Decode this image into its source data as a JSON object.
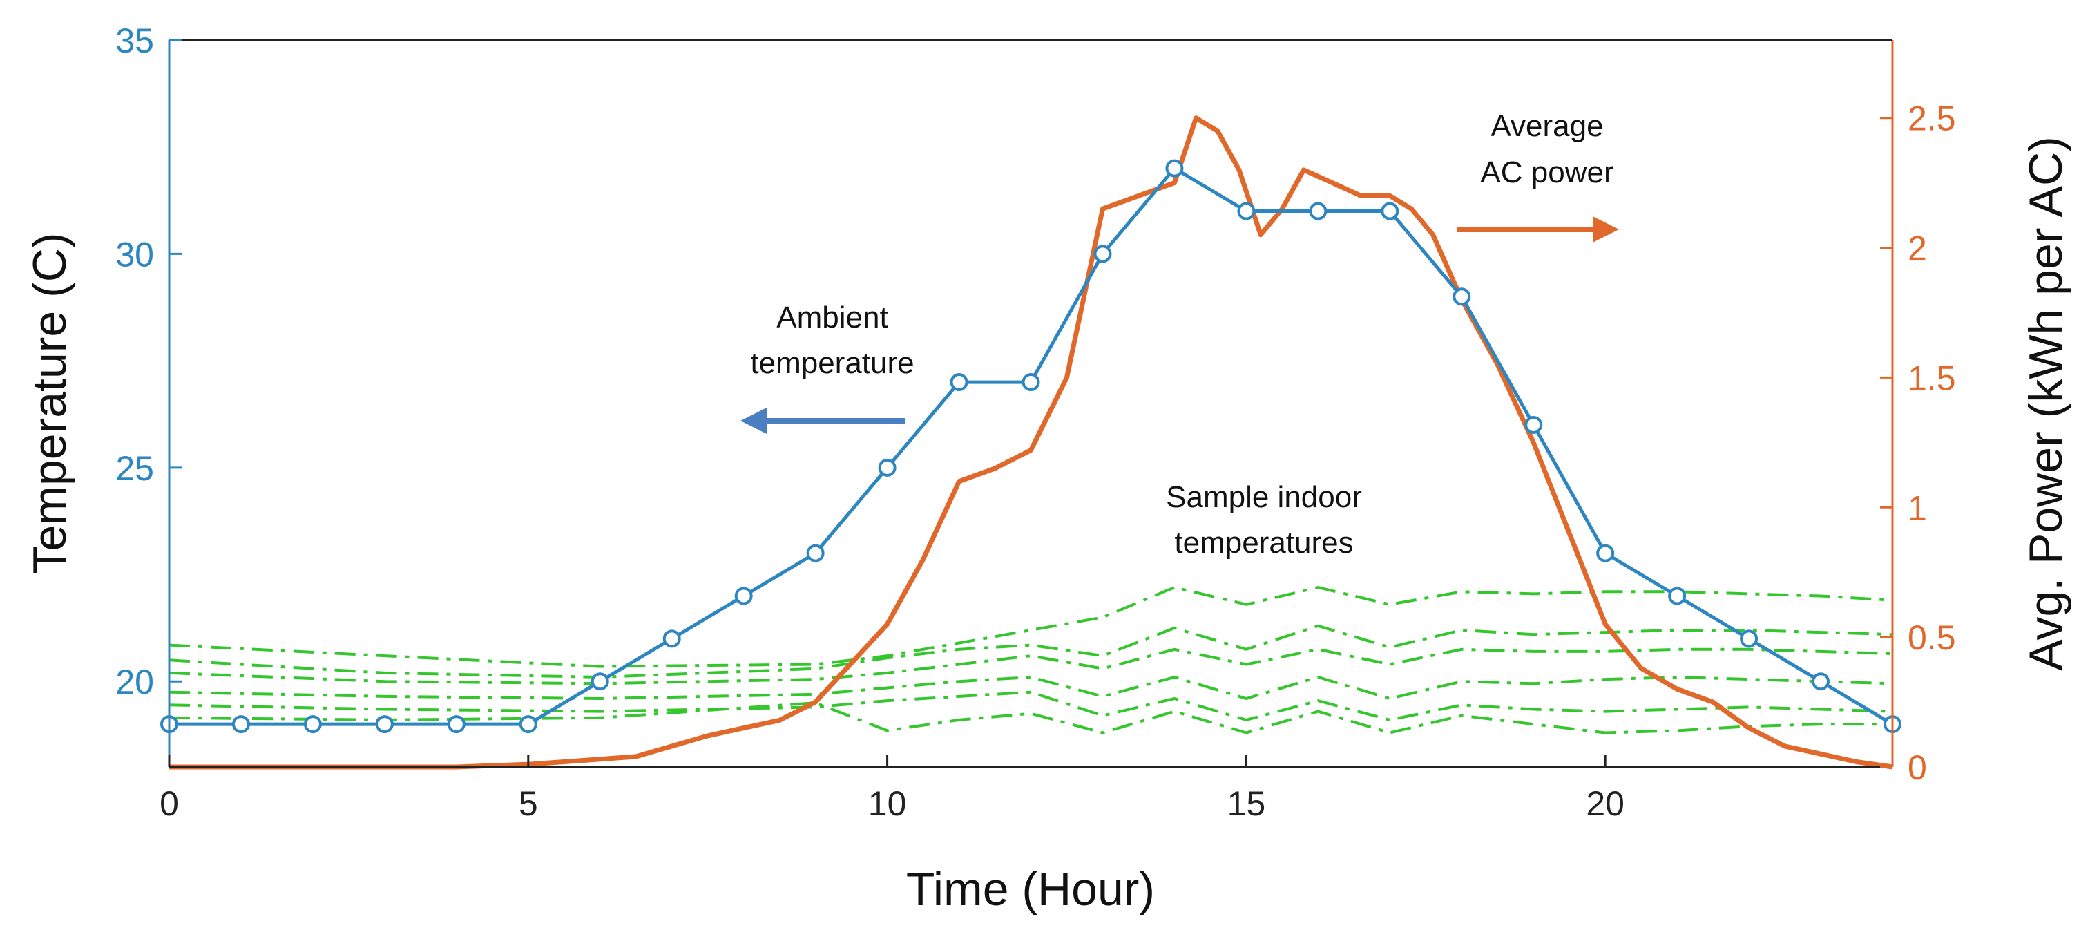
{
  "chart_data": {
    "type": "line",
    "title": "",
    "xlabel": "Time (Hour)",
    "ylabel_left": "Temperature (C)",
    "ylabel_right": "Avg. Power (kWh per AC)",
    "xlim": [
      0,
      24
    ],
    "ylim_left": [
      18,
      35
    ],
    "ylim_right": [
      0,
      2.8
    ],
    "x_ticks": [
      "0",
      "5",
      "10",
      "15",
      "20"
    ],
    "y_left_ticks": [
      "20",
      "25",
      "30",
      "35"
    ],
    "y_right_ticks": [
      "0",
      "0.5",
      "1",
      "1.5",
      "2",
      "2.5"
    ],
    "grid": false,
    "series": [
      {
        "name": "Ambient temperature",
        "axis": "left",
        "color": "#2e86c1",
        "marker": "circle",
        "x": [
          0,
          1,
          2,
          3,
          4,
          5,
          6,
          7,
          8,
          9,
          10,
          11,
          12,
          13,
          14,
          15,
          16,
          17,
          18,
          19,
          20,
          21,
          22,
          23,
          24
        ],
        "y": [
          19,
          19,
          19,
          19,
          19,
          19,
          20,
          21,
          22,
          23,
          25,
          27,
          27,
          30,
          32,
          31,
          31,
          31,
          29,
          26,
          23,
          22,
          21,
          20,
          19
        ]
      },
      {
        "name": "Average AC power",
        "axis": "right",
        "color": "#e0682a",
        "x": [
          0,
          4,
          5,
          5.5,
          6,
          6.5,
          7,
          7.5,
          8,
          8.5,
          9,
          9.5,
          10,
          10.5,
          11,
          11.5,
          12,
          12.5,
          13,
          13.5,
          14,
          14.3,
          14.6,
          14.9,
          15.2,
          15.5,
          15.8,
          16.2,
          16.6,
          17,
          17.3,
          17.6,
          18,
          18.5,
          19,
          19.5,
          20,
          20.5,
          21,
          21.5,
          22,
          22.5,
          23,
          23.5,
          24
        ],
        "y": [
          0,
          0,
          0.01,
          0.02,
          0.03,
          0.04,
          0.08,
          0.12,
          0.15,
          0.18,
          0.25,
          0.4,
          0.55,
          0.8,
          1.1,
          1.15,
          1.22,
          1.5,
          2.15,
          2.2,
          2.25,
          2.5,
          2.45,
          2.3,
          2.05,
          2.15,
          2.3,
          2.25,
          2.2,
          2.2,
          2.15,
          2.05,
          1.8,
          1.55,
          1.25,
          0.9,
          0.55,
          0.38,
          0.3,
          0.25,
          0.15,
          0.08,
          0.05,
          0.02,
          0
        ]
      },
      {
        "name": "Sample indoor temperature 1",
        "axis": "left",
        "color": "#35c62e",
        "style": "dashdot",
        "x": [
          0,
          3,
          6,
          9,
          10,
          11,
          12,
          13,
          14,
          15,
          16,
          17,
          18,
          19,
          20,
          21,
          22,
          23,
          24
        ],
        "y": [
          20.85,
          20.6,
          20.35,
          20.4,
          20.6,
          20.9,
          21.2,
          21.5,
          22.2,
          21.8,
          22.2,
          21.8,
          22.1,
          22.05,
          22.1,
          22.1,
          22.05,
          22.0,
          21.9
        ]
      },
      {
        "name": "Sample indoor temperature 2",
        "axis": "left",
        "color": "#35c62e",
        "style": "dashdot",
        "x": [
          0,
          3,
          6,
          9,
          10,
          11,
          12,
          13,
          14,
          15,
          16,
          17,
          18,
          19,
          20,
          21,
          22,
          23,
          24
        ],
        "y": [
          20.5,
          20.2,
          20.1,
          20.3,
          20.55,
          20.75,
          20.85,
          20.6,
          21.25,
          20.75,
          21.3,
          20.8,
          21.2,
          21.1,
          21.15,
          21.2,
          21.2,
          21.15,
          21.1
        ]
      },
      {
        "name": "Sample indoor temperature 3",
        "axis": "left",
        "color": "#35c62e",
        "style": "dashdot",
        "x": [
          0,
          3,
          6,
          9,
          10,
          11,
          12,
          13,
          14,
          15,
          16,
          17,
          18,
          19,
          20,
          21,
          22,
          23,
          24
        ],
        "y": [
          20.2,
          20.0,
          19.95,
          20.05,
          20.2,
          20.4,
          20.6,
          20.3,
          20.75,
          20.4,
          20.75,
          20.4,
          20.75,
          20.7,
          20.7,
          20.75,
          20.75,
          20.7,
          20.65
        ]
      },
      {
        "name": "Sample indoor temperature 4",
        "axis": "left",
        "color": "#35c62e",
        "style": "dashdot",
        "x": [
          0,
          3,
          6,
          9,
          10,
          11,
          12,
          13,
          14,
          15,
          16,
          17,
          18,
          19,
          20,
          21,
          22,
          23,
          24
        ],
        "y": [
          19.75,
          19.65,
          19.6,
          19.7,
          19.85,
          20.0,
          20.1,
          19.65,
          20.1,
          19.6,
          20.1,
          19.6,
          20.0,
          19.95,
          20.05,
          20.1,
          20.05,
          20.0,
          19.95
        ]
      },
      {
        "name": "Sample indoor temperature 5",
        "axis": "left",
        "color": "#35c62e",
        "style": "dashdot",
        "x": [
          0,
          3,
          6,
          9,
          10,
          11,
          12,
          13,
          14,
          15,
          16,
          17,
          18,
          19,
          20,
          21,
          22,
          23,
          24
        ],
        "y": [
          19.45,
          19.35,
          19.3,
          19.4,
          19.55,
          19.65,
          19.75,
          19.2,
          19.6,
          19.1,
          19.55,
          19.1,
          19.45,
          19.35,
          19.3,
          19.35,
          19.4,
          19.35,
          19.3
        ]
      },
      {
        "name": "Sample indoor temperature 6",
        "axis": "left",
        "color": "#35c62e",
        "style": "dashdot",
        "x": [
          0,
          3,
          6,
          9,
          10,
          11,
          12,
          13,
          14,
          15,
          16,
          17,
          18,
          19,
          20,
          21,
          22,
          23,
          24
        ],
        "y": [
          19.15,
          19.1,
          19.15,
          19.5,
          18.85,
          19.1,
          19.25,
          18.8,
          19.3,
          18.8,
          19.3,
          18.8,
          19.2,
          19.0,
          18.8,
          18.85,
          18.95,
          19.0,
          19.0
        ]
      }
    ],
    "annotations": {
      "ambient": {
        "line1": "Ambient",
        "line2": "temperature",
        "arrow": "left"
      },
      "power": {
        "line1": "Average",
        "line2": "AC power",
        "arrow": "right"
      },
      "indoor": {
        "line1": "Sample indoor",
        "line2": "temperatures"
      }
    },
    "colors": {
      "ambient": "#2e86c1",
      "power": "#e0682a",
      "indoor": "#35c62e",
      "ambient_arrow": "#4a7fc1",
      "power_arrow": "#e0682a"
    }
  }
}
